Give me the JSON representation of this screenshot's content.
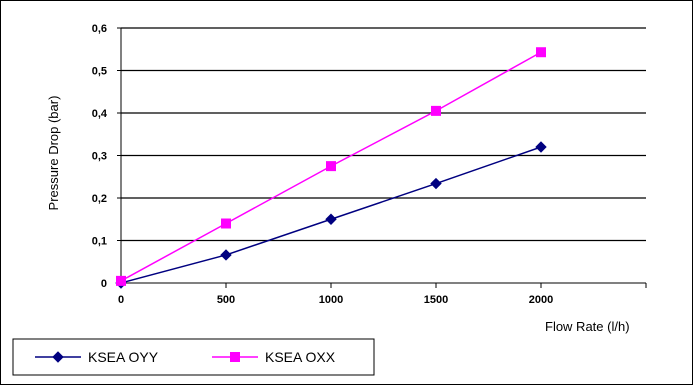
{
  "chart_data": {
    "type": "line",
    "title": "",
    "xlabel": "Flow Rate (l/h)",
    "ylabel": "Pressure Drop (bar)",
    "xlim": [
      0,
      2500
    ],
    "ylim": [
      0,
      0.6
    ],
    "x_ticks": [
      {
        "value": 0,
        "label": "0"
      },
      {
        "value": 500,
        "label": "500"
      },
      {
        "value": 1000,
        "label": "1000"
      },
      {
        "value": 1500,
        "label": "1500"
      },
      {
        "value": 2000,
        "label": "2000"
      }
    ],
    "y_ticks": [
      {
        "value": 0,
        "label": "0"
      },
      {
        "value": 0.1,
        "label": "0,1"
      },
      {
        "value": 0.2,
        "label": "0,2"
      },
      {
        "value": 0.3,
        "label": "0,3"
      },
      {
        "value": 0.4,
        "label": "0,4"
      },
      {
        "value": 0.5,
        "label": "0,5"
      },
      {
        "value": 0.6,
        "label": "0,6"
      }
    ],
    "grid": "horizontal",
    "legend_position": "bottom-left",
    "series": [
      {
        "name": "KSEA OYY",
        "color": "#000080",
        "marker": "diamond",
        "points": [
          {
            "x": 0,
            "y": 0.0
          },
          {
            "x": 500,
            "y": 0.066
          },
          {
            "x": 1000,
            "y": 0.15
          },
          {
            "x": 1500,
            "y": 0.234
          },
          {
            "x": 2000,
            "y": 0.32
          }
        ]
      },
      {
        "name": "KSEA OXX",
        "color": "#ff00ff",
        "marker": "square",
        "points": [
          {
            "x": 0,
            "y": 0.005
          },
          {
            "x": 500,
            "y": 0.14
          },
          {
            "x": 1000,
            "y": 0.275
          },
          {
            "x": 1500,
            "y": 0.405
          },
          {
            "x": 2000,
            "y": 0.543
          }
        ]
      }
    ]
  }
}
